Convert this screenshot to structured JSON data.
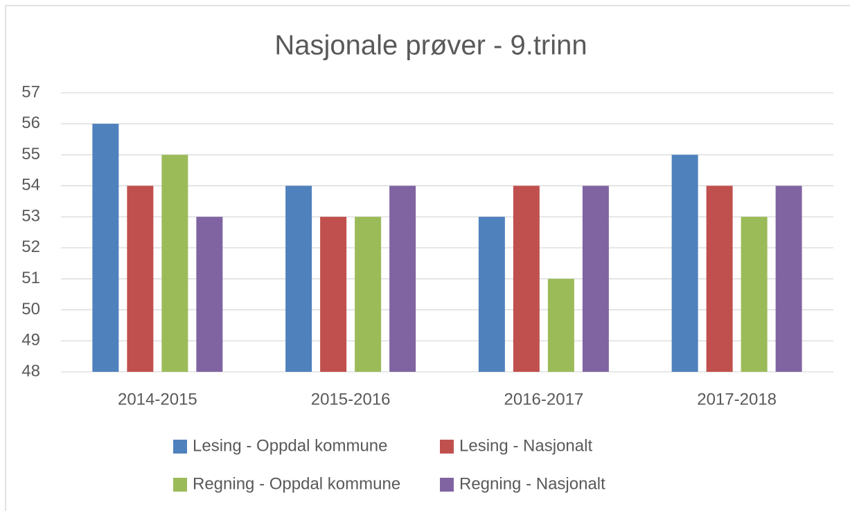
{
  "chart_data": {
    "type": "bar",
    "title": "Nasjonale prøver - 9.trinn",
    "categories": [
      "2014-2015",
      "2015-2016",
      "2016-2017",
      "2017-2018"
    ],
    "series": [
      {
        "name": "Lesing - Oppdal kommune",
        "color": "#4f81bd",
        "values": [
          56,
          54,
          53,
          55
        ]
      },
      {
        "name": "Lesing - Nasjonalt",
        "color": "#c0504d",
        "values": [
          54,
          53,
          54,
          54
        ]
      },
      {
        "name": "Regning - Oppdal kommune",
        "color": "#9bbb59",
        "values": [
          55,
          53,
          51,
          53
        ]
      },
      {
        "name": "Regning - Nasjonalt",
        "color": "#8064a2",
        "values": [
          53,
          54,
          54,
          54
        ]
      }
    ],
    "ylim": [
      48,
      57
    ],
    "yticks": [
      48,
      49,
      50,
      51,
      52,
      53,
      54,
      55,
      56,
      57
    ],
    "grid": true,
    "legend": "bottom"
  }
}
